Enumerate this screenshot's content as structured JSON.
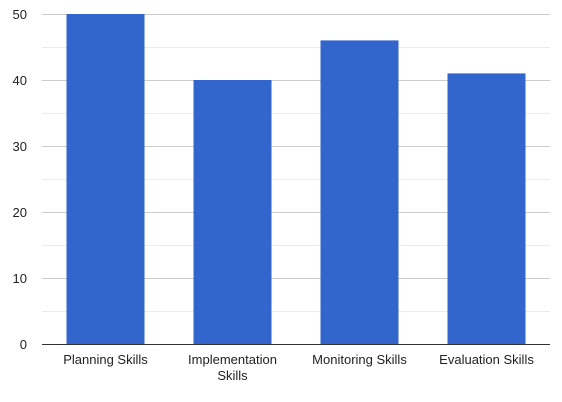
{
  "chart_data": {
    "type": "bar",
    "categories": [
      "Planning Skills",
      "Implementation Skills",
      "Monitoring Skills",
      "Evaluation Skills"
    ],
    "category_label_lines": [
      [
        "Planning Skills"
      ],
      [
        "Implementation",
        "Skills"
      ],
      [
        "Monitoring Skills"
      ],
      [
        "Evaluation Skills"
      ]
    ],
    "values": [
      50,
      40,
      46,
      41
    ],
    "ylim": [
      0,
      50
    ],
    "yticks": [
      0,
      10,
      20,
      30,
      40,
      50
    ],
    "grid": true,
    "minor_grid": true,
    "legend": "none",
    "title": "",
    "xlabel": "",
    "ylabel": ""
  },
  "colors": {
    "bar": "#3366cc",
    "major_grid": "#cccccc",
    "minor_grid": "#ebebeb",
    "axis": "#333333",
    "tick_text": "#222222"
  }
}
